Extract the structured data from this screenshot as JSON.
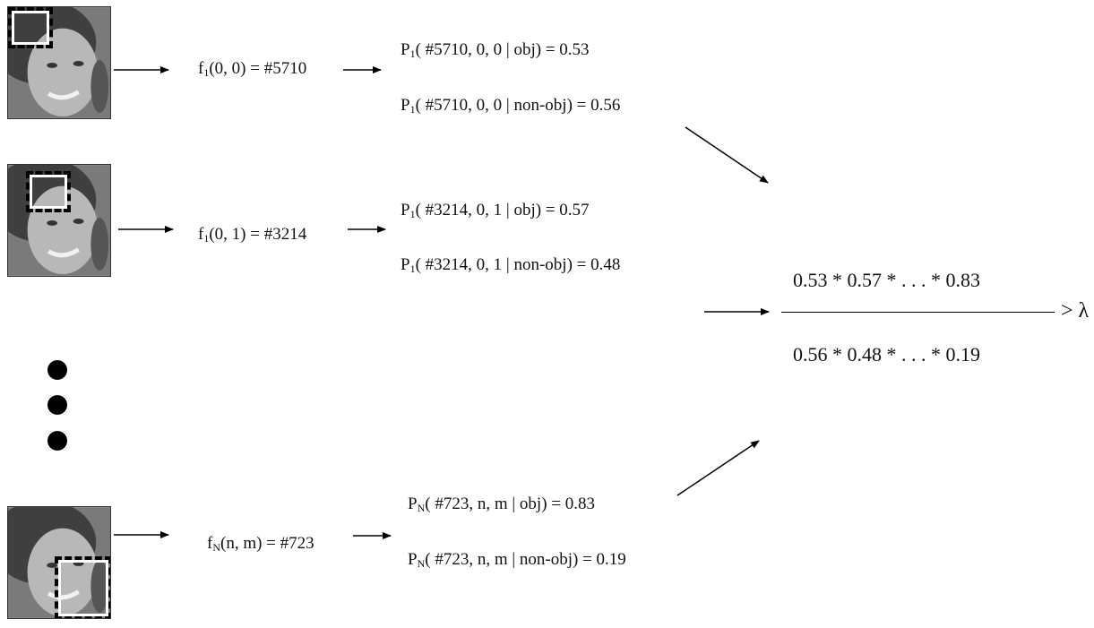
{
  "rows": [
    {
      "feature": {
        "fn": "f",
        "sub": "1",
        "args": "(0, 0) = #5710"
      },
      "p_obj": {
        "p": "P",
        "sub": "1",
        "rest": "( #5710, 0, 0 | obj) = 0.53"
      },
      "p_non": {
        "p": "P",
        "sub": "1",
        "rest": "( #5710, 0, 0 | non-obj) = 0.56"
      }
    },
    {
      "feature": {
        "fn": "f",
        "sub": "1",
        "args": "(0, 1) = #3214"
      },
      "p_obj": {
        "p": "P",
        "sub": "1",
        "rest": "( #3214, 0, 1 | obj) = 0.57"
      },
      "p_non": {
        "p": "P",
        "sub": "1",
        "rest": "( #3214, 0, 1 | non-obj) = 0.48"
      }
    },
    {
      "feature": {
        "fn": "f",
        "sub": "N",
        "args": "(n, m) = #723"
      },
      "p_obj": {
        "p": "P",
        "sub": "N",
        "rest": "( #723, n, m | obj) = 0.83"
      },
      "p_non": {
        "p": "P",
        "sub": "N",
        "rest": "( #723, n, m | non-obj) = 0.19"
      }
    }
  ],
  "ratio": {
    "numerator": "0.53 * 0.57 * . . . * 0.83",
    "denominator": "0.56 * 0.48 * . . . * 0.19",
    "comparison": "> λ"
  }
}
